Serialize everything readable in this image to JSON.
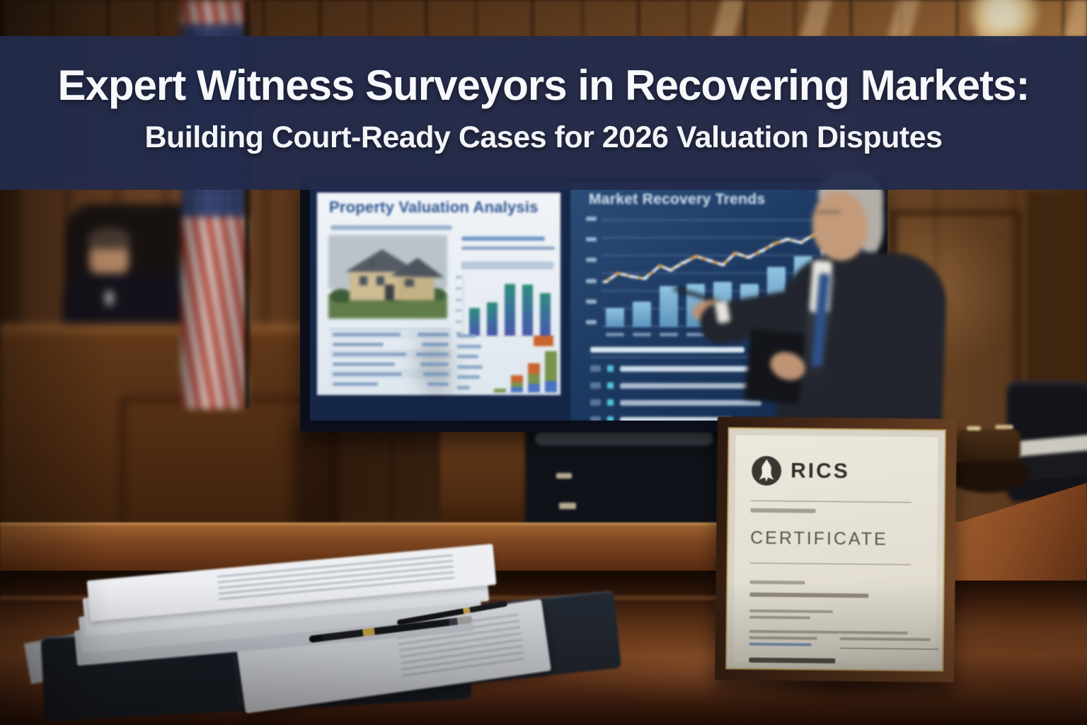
{
  "banner": {
    "title_line1": "Expert Witness Surveyors in Recovering Markets:",
    "title_line2": "Building Court-Ready Cases for 2026 Valuation Disputes",
    "bg_color": "#232b4c",
    "text_color": "#f7f8fb"
  },
  "scene": {
    "setting": "courtroom with judge, American flag, presentation screen, expert witness presenter, desk with legal documents, pens and framed certificate",
    "screen_left_slide_bg": "#eef2f6",
    "screen_right_slide_bg": "#1d3a63"
  },
  "screen": {
    "left_slide": {
      "title": "Property Valuation Analysis",
      "title_color": "#2e5590",
      "subtitle_legibility": "blurred",
      "photo": "two-story suburban house with gray roof and lawn"
    },
    "right_slide": {
      "title": "Market Recovery Trends",
      "title_color": "#d6e6f5",
      "bullet_count": 4,
      "bullet_marker_color": "#4fc4d6",
      "body_text_legibility": "blurred"
    }
  },
  "certificate": {
    "org": "RICS",
    "heading": "CERTIFICATE",
    "logo": "rics-lion-roundel",
    "paper_color": "#e9e5da",
    "frame_color": "#4a2a18"
  },
  "chart_data": [
    {
      "id": "property-valuation-bars",
      "type": "bar",
      "title": "comparison bars on left slide (axis labels blurred)",
      "categories": [
        "",
        "",
        "",
        "",
        ""
      ],
      "values": [
        45,
        55,
        85,
        84,
        70
      ],
      "ylim": [
        0,
        100
      ],
      "bar_color_top": "#2f8d7c",
      "bar_color_bottom": "#4a57a8",
      "grid": false
    },
    {
      "id": "property-valuation-stacked",
      "type": "bar",
      "stacked": true,
      "title": "stacked growth bars on left slide (labels blurred)",
      "categories": [
        "",
        "",
        "",
        ""
      ],
      "series": [
        {
          "name": "segment-blue",
          "color": "#4a74c4",
          "values": [
            0,
            7,
            12,
            16
          ]
        },
        {
          "name": "segment-green",
          "color": "#79944c",
          "values": [
            5,
            7,
            14,
            42
          ]
        },
        {
          "name": "segment-orange",
          "color": "#c9662f",
          "values": [
            0,
            10,
            15,
            0
          ]
        }
      ],
      "legend_swatch_color": "#c9662f",
      "ylim": [
        0,
        100
      ]
    },
    {
      "id": "market-recovery-trends",
      "type": "bar+line",
      "title": "Market Recovery Trends",
      "bar_values": [
        18,
        24,
        38,
        40,
        42,
        40,
        56,
        66,
        74
      ],
      "bar_color": "#8fc4e4",
      "line_color": "#eef4f8",
      "line_accent_color": "#e2a24c",
      "line_points_pct": [
        [
          2,
          60
        ],
        [
          7,
          52
        ],
        [
          12,
          55
        ],
        [
          17,
          57
        ],
        [
          23,
          45
        ],
        [
          27,
          49
        ],
        [
          32,
          42
        ],
        [
          37,
          36
        ],
        [
          42,
          40
        ],
        [
          47,
          44
        ],
        [
          52,
          33
        ],
        [
          57,
          37
        ],
        [
          62,
          31
        ],
        [
          67,
          24
        ],
        [
          72,
          20
        ],
        [
          77,
          23
        ],
        [
          82,
          16
        ],
        [
          87,
          12
        ],
        [
          94,
          7
        ]
      ],
      "gridlines": 6,
      "axis_labels_legibility": "blurred",
      "ylim": [
        0,
        100
      ]
    }
  ]
}
